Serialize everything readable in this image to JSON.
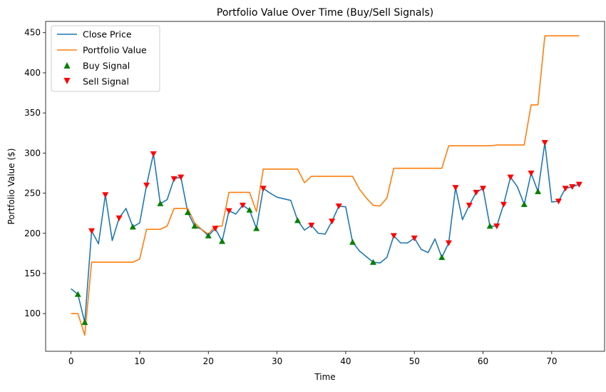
{
  "chart_data": {
    "type": "line",
    "title": "Portfolio Value Over Time (Buy/Sell Signals)",
    "xlabel": "Time",
    "ylabel": "Portfolio Value ($)",
    "xlim": [
      -3.7,
      77.7
    ],
    "ylim": [
      53,
      464
    ],
    "xticks": [
      0,
      10,
      20,
      30,
      40,
      50,
      60,
      70
    ],
    "yticks": [
      100,
      150,
      200,
      250,
      300,
      350,
      400,
      450
    ],
    "grid": false,
    "legend_position": "top-left",
    "legend": [
      "Close Price",
      "Portfolio Value",
      "Buy Signal",
      "Sell Signal"
    ],
    "colors": {
      "close": "#1f77b4",
      "portfolio": "#ff7f0e",
      "buy": "#008000",
      "sell": "#ff0000"
    },
    "series": [
      {
        "name": "Close Price",
        "x": [
          0,
          1,
          2,
          3,
          4,
          5,
          6,
          7,
          8,
          9,
          10,
          11,
          12,
          13,
          14,
          15,
          16,
          17,
          18,
          19,
          20,
          21,
          22,
          23,
          24,
          25,
          26,
          27,
          28,
          29,
          30,
          31,
          32,
          33,
          34,
          35,
          36,
          37,
          38,
          39,
          40,
          41,
          42,
          43,
          44,
          45,
          46,
          47,
          48,
          49,
          50,
          51,
          52,
          53,
          54,
          55,
          56,
          57,
          58,
          59,
          60,
          61,
          62,
          63,
          64,
          65,
          66,
          67,
          68,
          69,
          70,
          71,
          72,
          73,
          74
        ],
        "values": [
          131,
          124,
          89,
          203,
          187,
          248,
          191,
          219,
          231,
          208,
          213,
          260,
          299,
          237,
          242,
          268,
          270,
          226,
          209,
          205,
          197,
          206,
          190,
          228,
          224,
          235,
          229,
          206,
          256,
          250,
          245,
          243,
          241,
          216,
          204,
          210,
          200,
          199,
          215,
          234,
          233,
          189,
          178,
          171,
          164,
          163,
          170,
          197,
          188,
          188,
          194,
          180,
          176,
          193,
          170,
          188,
          257,
          217,
          235,
          251,
          256,
          209,
          209,
          236,
          270,
          258,
          236,
          275,
          252,
          313,
          239,
          240,
          256,
          258,
          261
        ]
      },
      {
        "name": "Portfolio Value",
        "x": [
          0,
          1,
          2,
          3,
          4,
          5,
          6,
          7,
          8,
          9,
          10,
          11,
          12,
          13,
          14,
          15,
          16,
          17,
          18,
          19,
          20,
          21,
          22,
          23,
          24,
          25,
          26,
          27,
          28,
          29,
          30,
          31,
          32,
          33,
          34,
          35,
          36,
          37,
          38,
          39,
          40,
          41,
          42,
          43,
          44,
          45,
          46,
          47,
          48,
          49,
          50,
          51,
          52,
          53,
          54,
          55,
          56,
          57,
          58,
          59,
          60,
          61,
          62,
          63,
          64,
          65,
          66,
          67,
          68,
          69,
          70,
          71,
          72,
          73,
          74
        ],
        "values": [
          100,
          100,
          73,
          164,
          164,
          164,
          164,
          164,
          164,
          164,
          168,
          205,
          205,
          205,
          209,
          231,
          231,
          231,
          213,
          205,
          199,
          209,
          209,
          251,
          251,
          251,
          251,
          227,
          280,
          280,
          280,
          280,
          280,
          280,
          263,
          271,
          271,
          271,
          271,
          271,
          271,
          271,
          255,
          244,
          235,
          234,
          244,
          281,
          281,
          281,
          281,
          281,
          281,
          281,
          281,
          309,
          309,
          309,
          309,
          309,
          309,
          309,
          310,
          310,
          310,
          310,
          310,
          360,
          360,
          446,
          446,
          446,
          446,
          446,
          446
        ]
      }
    ],
    "buy_signals": {
      "name": "Buy Signal",
      "x": [
        1,
        2,
        9,
        13,
        17,
        18,
        20,
        22,
        26,
        27,
        33,
        41,
        44,
        54,
        61,
        66,
        68
      ],
      "values": [
        124,
        89,
        208,
        237,
        226,
        209,
        197,
        190,
        229,
        206,
        216,
        189,
        164,
        170,
        209,
        236,
        252
      ]
    },
    "sell_signals": {
      "name": "Sell Signal",
      "x": [
        3,
        5,
        7,
        11,
        12,
        15,
        16,
        21,
        23,
        25,
        28,
        35,
        38,
        39,
        47,
        50,
        55,
        56,
        58,
        59,
        60,
        62,
        63,
        64,
        67,
        69,
        71,
        72,
        73,
        74
      ],
      "values": [
        203,
        248,
        219,
        260,
        299,
        268,
        270,
        206,
        228,
        235,
        256,
        210,
        215,
        234,
        197,
        194,
        188,
        257,
        235,
        251,
        256,
        209,
        236,
        270,
        275,
        313,
        240,
        256,
        258,
        261
      ]
    }
  }
}
